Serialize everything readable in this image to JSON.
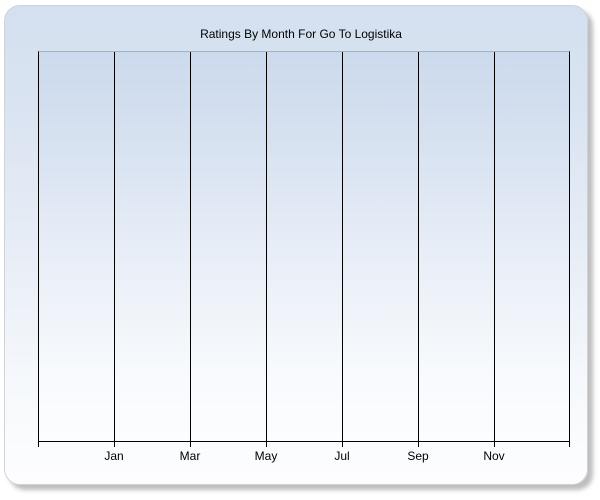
{
  "window": {
    "title": "Ratings By Month For Go To Logistika"
  },
  "chart_data": {
    "type": "line",
    "title": "Ratings By Month For Go To Logistika",
    "xlabel": "",
    "ylabel": "",
    "x_tick_labels": [
      "Jan",
      "Mar",
      "May",
      "Jul",
      "Sep",
      "Nov"
    ],
    "y_tick_labels": [],
    "series": [],
    "notes": "empty plot area - no data points, bars or lines rendered",
    "gridlines": "vertical only, one per two months, full plot height",
    "legend": "none",
    "colors": {
      "panel_gradient_top": "#d4e0f0",
      "panel_gradient_bottom": "#fdfdfe",
      "plot_gradient_top": "#ccdaed",
      "plot_gradient_bottom": "#fcfdff",
      "gridline": "#000000",
      "axis_line": "#000000",
      "plot_top_border": "#a6b1c3",
      "title_text": "#000000",
      "tick_label_text": "#000000",
      "page_background": "#ffffff"
    }
  }
}
